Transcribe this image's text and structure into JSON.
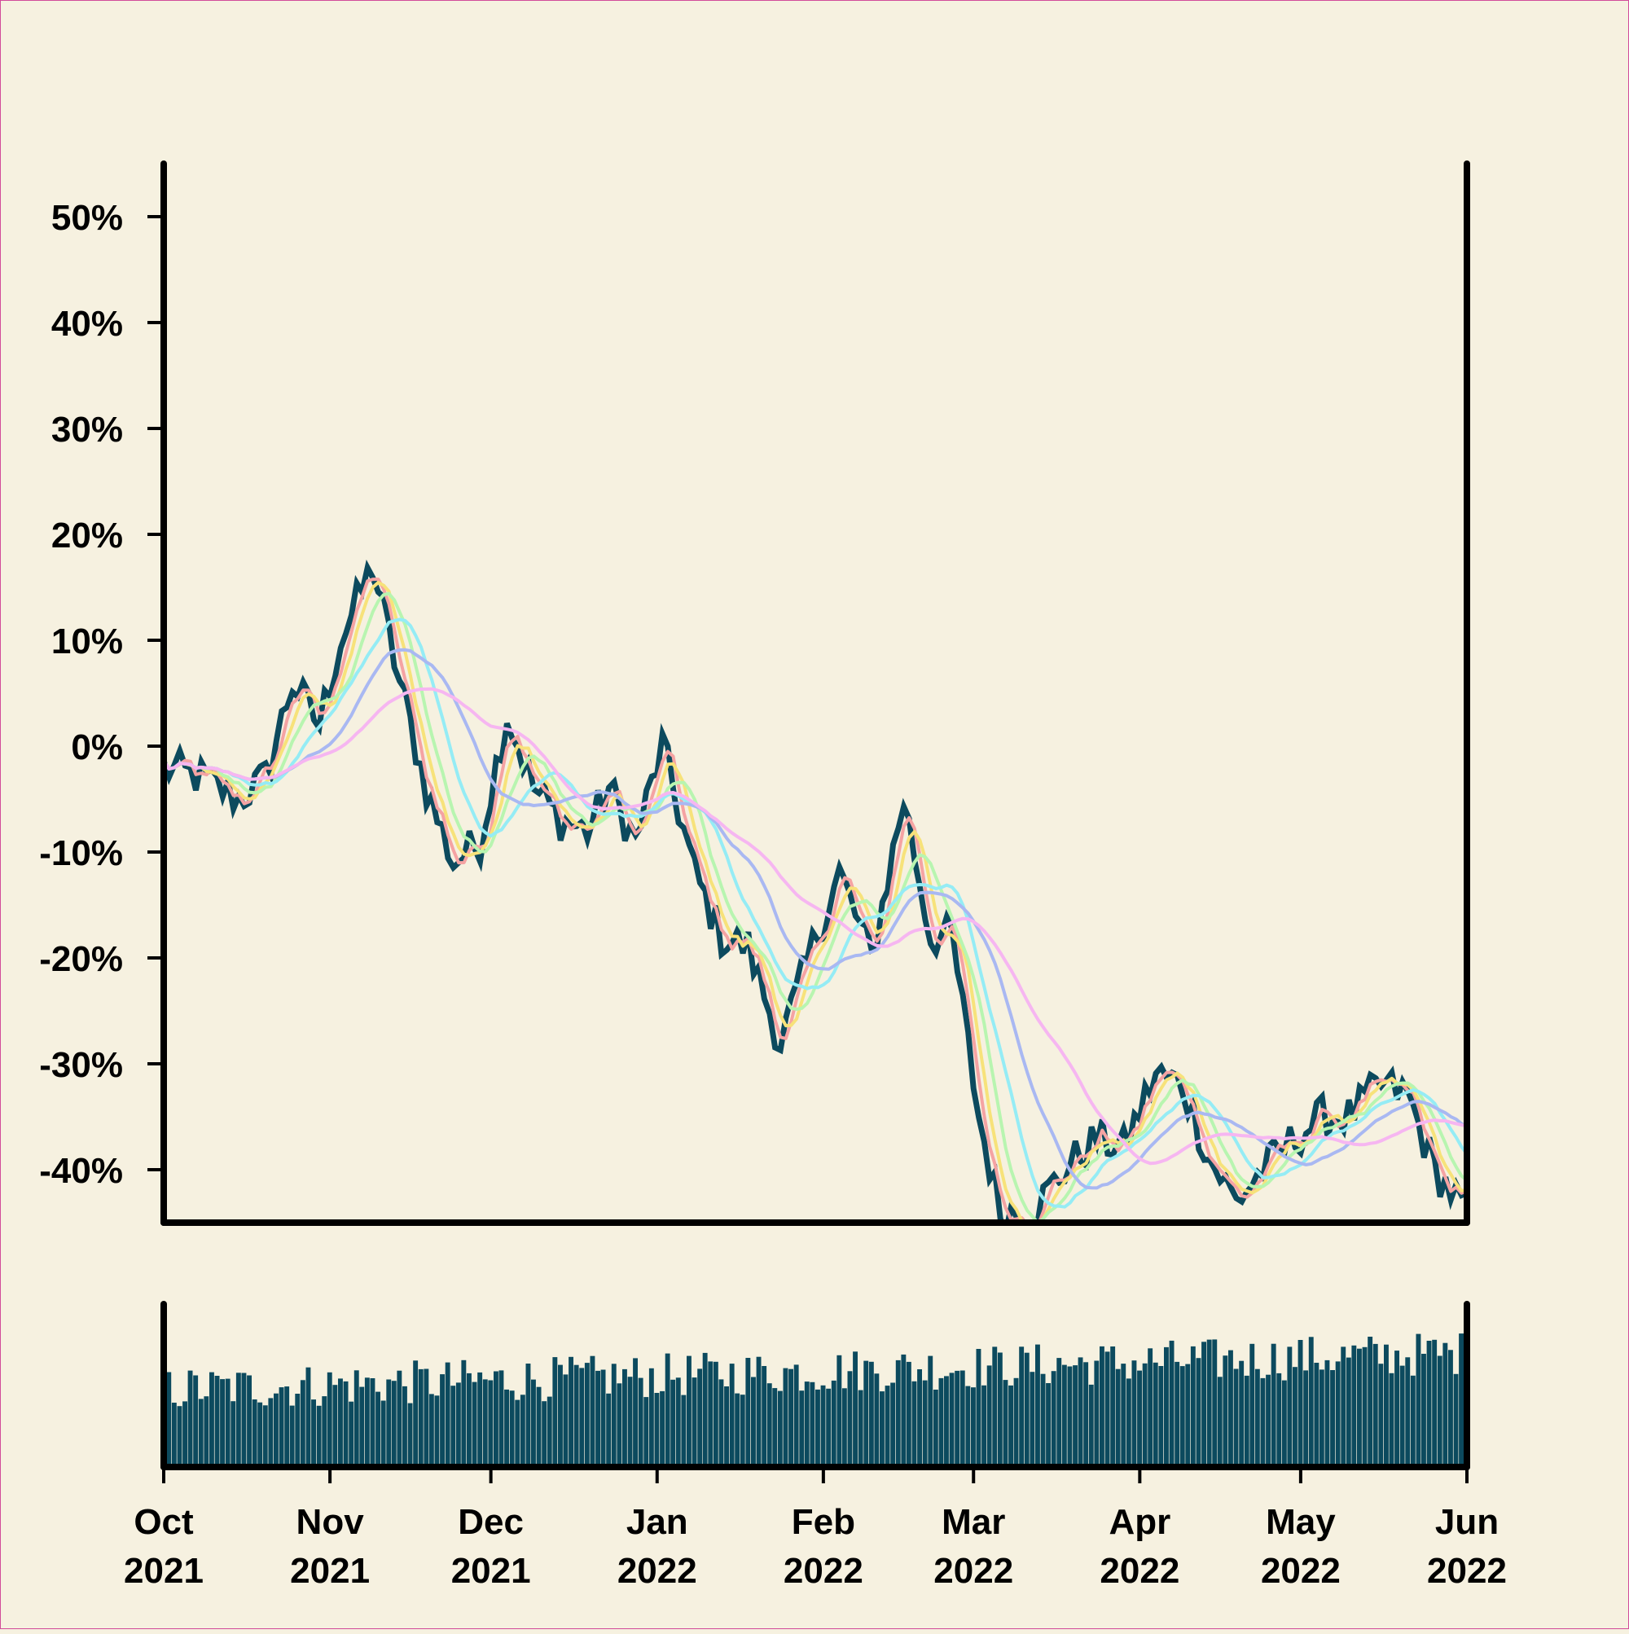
{
  "colors": {
    "background": "#f6f1e0",
    "price": "#0c4a5e",
    "volume": "#0c4a5e",
    "axis": "#000000",
    "frame_border": "#d24b9a"
  },
  "chart_data": [
    {
      "type": "line",
      "title": "",
      "xlabel": "",
      "ylabel": "",
      "x_range": [
        "2021-10-01",
        "2022-06-01"
      ],
      "ylim": [
        -45,
        55
      ],
      "grid": false,
      "legend": "none",
      "y_ticks": [
        {
          "value": 50,
          "label": "50%"
        },
        {
          "value": 40,
          "label": "40%"
        },
        {
          "value": 30,
          "label": "30%"
        },
        {
          "value": 20,
          "label": "20%"
        },
        {
          "value": 10,
          "label": "10%"
        },
        {
          "value": 0,
          "label": "0%"
        },
        {
          "value": -10,
          "label": "-10%"
        },
        {
          "value": -20,
          "label": "-20%"
        },
        {
          "value": -30,
          "label": "-30%"
        },
        {
          "value": -40,
          "label": "-40%"
        }
      ],
      "price_anchors": [
        [
          "2021-10-01",
          -2
        ],
        [
          "2021-10-08",
          -3
        ],
        [
          "2021-10-15",
          -5
        ],
        [
          "2021-10-20",
          -3
        ],
        [
          "2021-10-25",
          6
        ],
        [
          "2021-10-30",
          2
        ],
        [
          "2021-11-03",
          10
        ],
        [
          "2021-11-09",
          17
        ],
        [
          "2021-11-14",
          6
        ],
        [
          "2021-11-19",
          -4
        ],
        [
          "2021-11-24",
          -11
        ],
        [
          "2021-11-29",
          -9
        ],
        [
          "2021-12-04",
          3
        ],
        [
          "2021-12-09",
          -4
        ],
        [
          "2021-12-14",
          -7
        ],
        [
          "2021-12-19",
          -8
        ],
        [
          "2021-12-23",
          -4
        ],
        [
          "2021-12-28",
          -9
        ],
        [
          "2022-01-02",
          0
        ],
        [
          "2022-01-08",
          -12
        ],
        [
          "2022-01-13",
          -18
        ],
        [
          "2022-01-18",
          -19
        ],
        [
          "2022-01-24",
          -28
        ],
        [
          "2022-01-30",
          -19
        ],
        [
          "2022-02-04",
          -12
        ],
        [
          "2022-02-10",
          -20
        ],
        [
          "2022-02-16",
          -5
        ],
        [
          "2022-02-21",
          -18
        ],
        [
          "2022-02-25",
          -18
        ],
        [
          "2022-03-02",
          -35
        ],
        [
          "2022-03-06",
          -44
        ],
        [
          "2022-03-12",
          -44
        ],
        [
          "2022-03-18",
          -40
        ],
        [
          "2022-03-24",
          -37
        ],
        [
          "2022-03-29",
          -38
        ],
        [
          "2022-04-04",
          -31
        ],
        [
          "2022-04-09",
          -32
        ],
        [
          "2022-04-14",
          -39
        ],
        [
          "2022-04-19",
          -43
        ],
        [
          "2022-04-24",
          -40
        ],
        [
          "2022-04-30",
          -37
        ],
        [
          "2022-05-05",
          -35
        ],
        [
          "2022-05-10",
          -35
        ],
        [
          "2022-05-16",
          -32
        ],
        [
          "2022-05-21",
          -33
        ],
        [
          "2022-05-26",
          -40
        ],
        [
          "2022-06-01",
          -44
        ]
      ],
      "moving_average_windows": [
        3,
        5,
        8,
        13,
        21,
        34
      ]
    },
    {
      "type": "bar",
      "title": "",
      "series": [
        {
          "name": "",
          "values": [],
          "range": [
            60,
            160
          ]
        }
      ],
      "x_ticks": [
        {
          "date": "2021-10-01",
          "month": "Oct",
          "year": "2021"
        },
        {
          "date": "2021-11-01",
          "month": "Nov",
          "year": "2021"
        },
        {
          "date": "2021-12-01",
          "month": "Dec",
          "year": "2021"
        },
        {
          "date": "2022-01-01",
          "month": "Jan",
          "year": "2022"
        },
        {
          "date": "2022-02-01",
          "month": "Feb",
          "year": "2022"
        },
        {
          "date": "2022-03-01",
          "month": "Mar",
          "year": "2022"
        },
        {
          "date": "2022-04-01",
          "month": "Apr",
          "year": "2022"
        },
        {
          "date": "2022-05-01",
          "month": "May",
          "year": "2022"
        },
        {
          "date": "2022-06-01",
          "month": "Jun",
          "year": "2022"
        }
      ]
    }
  ],
  "ma_colors": [
    "#f5a3a3",
    "#f7e27a",
    "#b8f5b0",
    "#95ecf5",
    "#a9b8f2",
    "#f6b6f1"
  ]
}
